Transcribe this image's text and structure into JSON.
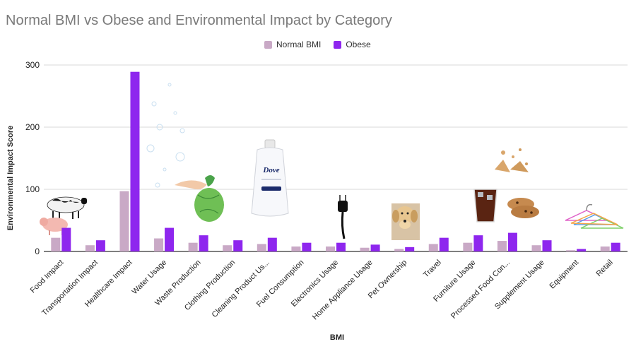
{
  "chart_data": {
    "type": "bar",
    "title": "Normal BMI vs Obese and Environmental Impact by Category",
    "xlabel": "BMI",
    "ylabel": "Environmental Impact Score",
    "ylim": [
      0,
      300
    ],
    "yticks": [
      0,
      100,
      200,
      300
    ],
    "grid": true,
    "legend_position": "top-center",
    "categories": [
      "Food Impact",
      "Transportation Impact",
      "Healthcare Impact",
      "Water Usage",
      "Waste Production",
      "Clothing Production",
      "Cleaning Product Us...",
      "Fuel Consumption",
      "Electronics Usage",
      "Home Appliance Usage",
      "Pet Ownership",
      "Travel",
      "Furniture Usage",
      "Processed Food Con...",
      "Supplement Usage",
      "Equipment",
      "Retail"
    ],
    "series": [
      {
        "name": "Normal BMI",
        "color": "#c9a9c6",
        "values": [
          22,
          10,
          97,
          21,
          14,
          10,
          12,
          8,
          8,
          6,
          4,
          12,
          14,
          17,
          10,
          2,
          8
        ]
      },
      {
        "name": "Obese",
        "color": "#8e26ee",
        "values": [
          38,
          18,
          289,
          38,
          26,
          18,
          22,
          14,
          14,
          11,
          7,
          22,
          26,
          30,
          18,
          4,
          14
        ]
      }
    ],
    "picture_icons": [
      "cow-pig-icon",
      "water-bubbles-icon",
      "trash-bag-icon",
      "dove-bottle-icon",
      "power-plug-icon",
      "dog-icon",
      "cola-cookies-icon",
      "clothes-hangers-icon"
    ]
  }
}
